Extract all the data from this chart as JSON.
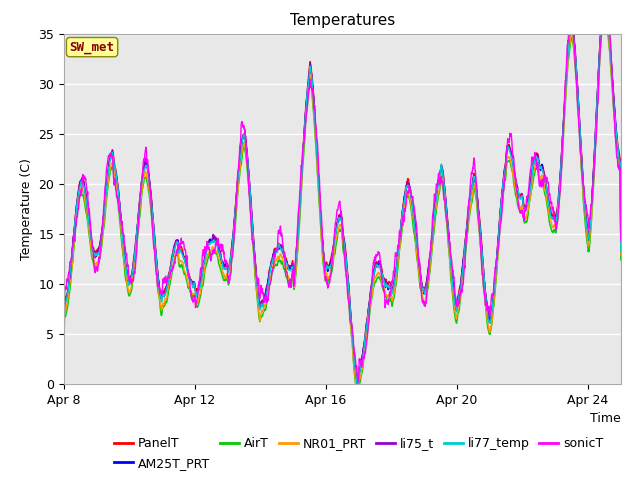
{
  "title": "Temperatures",
  "xlabel": "Time",
  "ylabel": "Temperature (C)",
  "ylim": [
    0,
    35
  ],
  "x_tick_labels": [
    "Apr 8",
    "Apr 12",
    "Apr 16",
    "Apr 20",
    "Apr 24"
  ],
  "y_ticks": [
    0,
    5,
    10,
    15,
    20,
    25,
    30,
    35
  ],
  "series_colors": {
    "PanelT": "#ff0000",
    "AM25T_PRT": "#0000ff",
    "AirT": "#00cc00",
    "NR01_PRT": "#ff9900",
    "li75_t": "#9900cc",
    "li77_temp": "#00cccc",
    "sonicT": "#ff00ff"
  },
  "annotation_text": "SW_met",
  "annotation_color": "#880000",
  "annotation_bg": "#ffff99",
  "background_color": "#e8e8e8",
  "grid_color": "#ffffff",
  "title_fontsize": 11,
  "label_fontsize": 9,
  "tick_fontsize": 9,
  "legend_fontsize": 9
}
